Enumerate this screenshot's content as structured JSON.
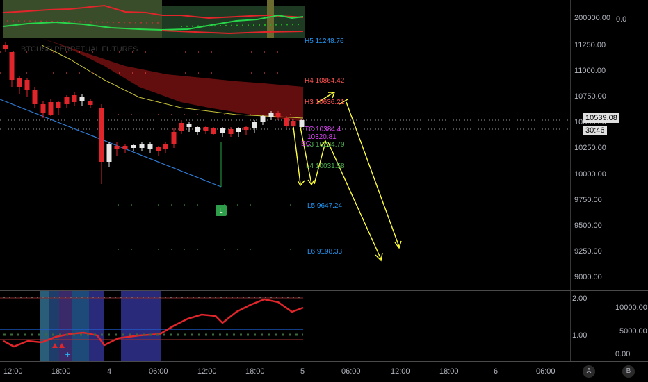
{
  "top_pane": {
    "price_label": "200000.00",
    "right_label": "0.0"
  },
  "main_pane": {
    "symbol": "BTCUSD PERPETUAL FUTURES",
    "price_ticks": [
      "11250.00",
      "11000.00",
      "10750.00",
      "10500.00",
      "10250.00",
      "10000.00",
      "9750.00",
      "9500.00",
      "9250.00",
      "9000.00"
    ],
    "current_price": "10539.08",
    "countdown": "30:46",
    "levels": {
      "h5": "H5 11248.76",
      "h4": "H4 10864.42",
      "h3": "H3 10636.21",
      "tc": "TC 10384.4",
      "pivot": "10320.81",
      "bc": "BC",
      "l3": "L3 10234.79",
      "l4": "L4 10031.58",
      "l5": "L5 9647.24",
      "l6": "L6 9198.33"
    },
    "marker_label": "L"
  },
  "bottom_pane": {
    "left_ticks": [
      "2.00",
      "1.00"
    ],
    "right_ticks": [
      "10000.00",
      "5000.00",
      "0.00"
    ]
  },
  "time_axis": {
    "labels": [
      "12:00",
      "18:00",
      "4",
      "06:00",
      "12:00",
      "18:00",
      "5",
      "06:00",
      "12:00",
      "18:00",
      "6",
      "06:00"
    ]
  },
  "corner_buttons": {
    "auto": "A",
    "log": "B"
  },
  "colors": {
    "bull": "#e8e8e8",
    "bear": "#e0252b",
    "h_levels": "#ff5252",
    "l_levels": "#4caf50",
    "extreme_levels": "#2196f3",
    "pivot": "#e040fb",
    "projection": "#ffff3b",
    "cloud": "#7a0f10"
  }
}
